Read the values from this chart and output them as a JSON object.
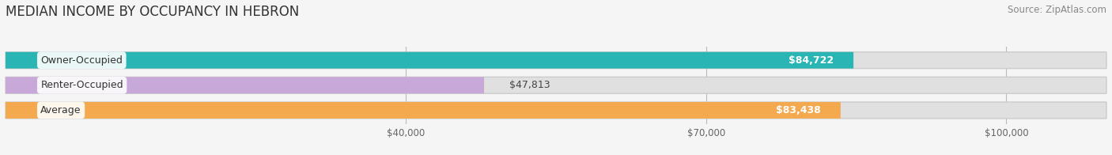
{
  "title": "MEDIAN INCOME BY OCCUPANCY IN HEBRON",
  "source": "Source: ZipAtlas.com",
  "categories": [
    "Owner-Occupied",
    "Renter-Occupied",
    "Average"
  ],
  "values": [
    84722,
    47813,
    83438
  ],
  "bar_colors": [
    "#2ab5b5",
    "#c8a8d8",
    "#f5a94e"
  ],
  "label_colors": [
    "white",
    "black",
    "white"
  ],
  "value_labels": [
    "$84,722",
    "$47,813",
    "$83,438"
  ],
  "xlim": [
    0,
    110000
  ],
  "xticks": [
    40000,
    70000,
    100000
  ],
  "xtick_labels": [
    "$40,000",
    "$70,000",
    "$100,000"
  ],
  "background_color": "#f5f5f5",
  "bar_bg_color": "#e0e0e0",
  "title_fontsize": 12,
  "source_fontsize": 8.5
}
